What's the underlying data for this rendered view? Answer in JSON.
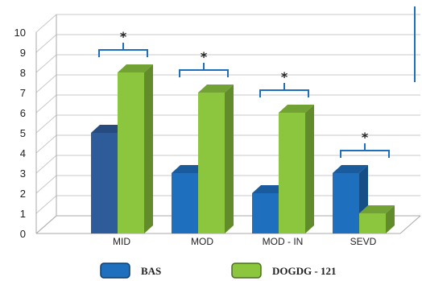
{
  "chart_data": {
    "type": "bar",
    "categories": [
      "MID",
      "MOD",
      "MOD  - IN",
      "SEVD"
    ],
    "series": [
      {
        "name": "BAS",
        "values": [
          5,
          3,
          2,
          3
        ],
        "color": "#1f6fbf",
        "first_color": "#2e5c9a"
      },
      {
        "name": "DOGDG - 121",
        "values": [
          8,
          7,
          6,
          1
        ],
        "color": "#8cc63f"
      }
    ],
    "ylim": [
      0,
      10
    ],
    "yticks": [
      "0",
      "1",
      "2",
      "3",
      "4",
      "5",
      "6",
      "7",
      "8",
      "9",
      "10"
    ],
    "grid": true,
    "legend_position": "bottom",
    "significance_marker": "*",
    "significant_categories": [
      0,
      1,
      2,
      3
    ]
  }
}
